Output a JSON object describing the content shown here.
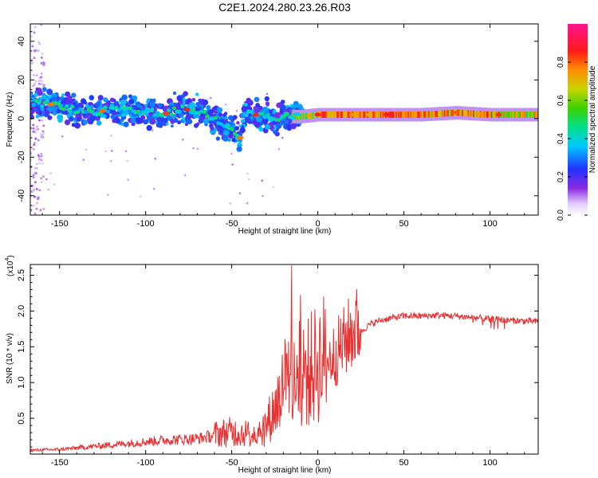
{
  "title": "C2E1.2024.280.23.26.R03",
  "chart_data": [
    {
      "type": "heatmap",
      "xlabel": "Height of straight line (km)",
      "ylabel": "Frequency (Hz)",
      "xlim": [
        -167,
        128
      ],
      "ylim": [
        -50,
        49
      ],
      "xticks": [
        -150,
        -100,
        -50,
        0,
        50,
        100
      ],
      "yticks": [
        -40,
        -20,
        0,
        20,
        40
      ],
      "colorbar": {
        "label": "Normalized spectral amplitude",
        "range": [
          0,
          1
        ],
        "ticks": [
          0.0,
          0.2,
          0.4,
          0.6,
          0.8
        ]
      },
      "ridge": {
        "x": [
          -165,
          -150,
          -140,
          -130,
          -120,
          -110,
          -100,
          -90,
          -80,
          -70,
          -60,
          -50,
          -45,
          -42,
          -40,
          -35,
          -30,
          -25,
          -20,
          -10,
          0,
          10,
          20,
          40,
          60,
          80,
          100,
          128
        ],
        "y": [
          8,
          7,
          4,
          3,
          5,
          4,
          3,
          2,
          5,
          4,
          0,
          -5,
          -10,
          6,
          5,
          1,
          2,
          -1,
          1,
          1,
          2,
          2,
          2,
          2,
          2,
          3,
          2,
          2
        ]
      }
    },
    {
      "type": "line",
      "xlabel": "Height of straight line (km)",
      "ylabel": "SNR (10 * v/v)",
      "yscale_label": "(x10",
      "yscale_exp": "4",
      "xlim": [
        -167,
        128
      ],
      "ylim": [
        0,
        2.65
      ],
      "xticks": [
        -150,
        -100,
        -50,
        0,
        50,
        100
      ],
      "yticks": [
        0.5,
        1.0,
        1.5,
        2.0,
        2.5
      ],
      "color": "#e83030",
      "series": [
        {
          "x": [
            -167,
            -150,
            -130,
            -110,
            -90,
            -70,
            -60,
            -50,
            -45,
            -40,
            -35,
            -30,
            -25,
            -20,
            -17,
            -13,
            -10,
            -5,
            0,
            5,
            10,
            15,
            20,
            25,
            30,
            35,
            40,
            45,
            50,
            60,
            70,
            80,
            90,
            100,
            110,
            120,
            128
          ],
          "y": [
            0.05,
            0.06,
            0.1,
            0.14,
            0.18,
            0.2,
            0.24,
            0.27,
            0.26,
            0.25,
            0.28,
            0.35,
            0.55,
            0.8,
            0.95,
            1.0,
            0.95,
            1.0,
            1.1,
            1.2,
            1.3,
            1.45,
            1.6,
            1.7,
            1.8,
            1.85,
            1.88,
            1.9,
            1.92,
            1.92,
            1.93,
            1.92,
            1.9,
            1.88,
            1.86,
            1.85,
            1.84
          ]
        }
      ]
    }
  ]
}
